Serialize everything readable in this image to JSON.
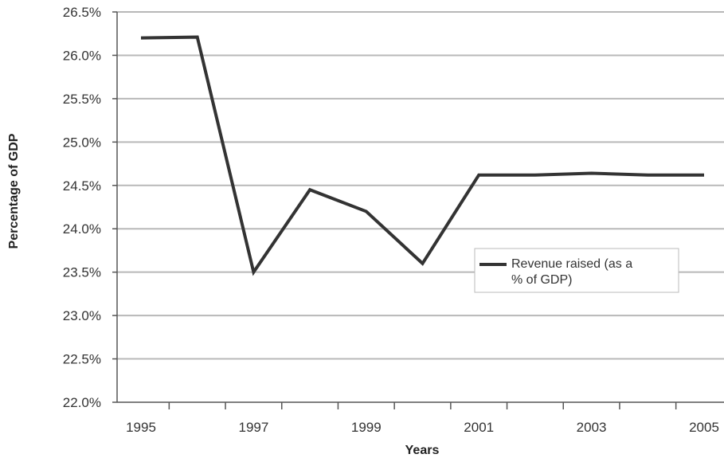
{
  "chart_data": {
    "type": "line",
    "title": "",
    "xlabel": "Years",
    "ylabel": "Percentage of GDP",
    "x": [
      1995,
      1996,
      1997,
      1998,
      1999,
      2000,
      2001,
      2002,
      2003,
      2004,
      2005
    ],
    "x_tick_labels": [
      "1995",
      "1997",
      "1999",
      "2001",
      "2003",
      "2005"
    ],
    "y_tick_labels": [
      "22.0%",
      "22.5%",
      "23.0%",
      "23.5%",
      "24.0%",
      "24.5%",
      "25.0%",
      "25.5%",
      "26.0%",
      "26.5%"
    ],
    "ylim": [
      22.0,
      26.5
    ],
    "grid": "horizontal",
    "legend_position": "right",
    "series": [
      {
        "name": "Revenue raised (as a % of GDP)",
        "legend_lines": [
          "Revenue raised (as a",
          "% of GDP)"
        ],
        "values": [
          26.2,
          26.21,
          23.5,
          24.45,
          24.2,
          23.6,
          24.62,
          24.62,
          24.64,
          24.62,
          24.62
        ]
      }
    ],
    "colors": {
      "line": "#333333",
      "grid": "#b8b8b8",
      "axis": "#555555",
      "legend_border": "#bbbbbb"
    }
  }
}
